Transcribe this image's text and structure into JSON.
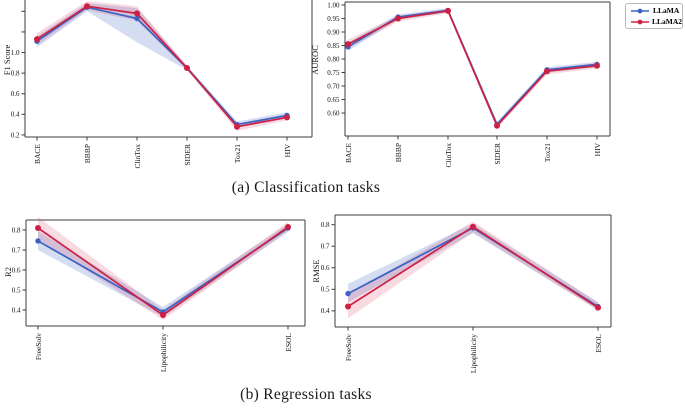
{
  "figure": {
    "background": "#ffffff",
    "caption_a": "(a) Classification tasks",
    "caption_b": "(b) Regression tasks"
  },
  "legend": {
    "position": "top-right",
    "items": [
      {
        "label": "LLaMA",
        "color": "#3b62c4"
      },
      {
        "label": "LLaMA2",
        "color": "#ce2045"
      }
    ]
  },
  "chart_data": [
    {
      "id": "f1",
      "type": "line",
      "title": "",
      "xlabel": "",
      "ylabel": "F1 Score",
      "categories": [
        "BACE",
        "BBBP",
        "ClinTox",
        "SIDER",
        "Tox21",
        "HIV"
      ],
      "ylim": [
        0.18,
        1.51
      ],
      "grid": false,
      "yticks": [
        {
          "value": 0.2,
          "label": "0.2"
        },
        {
          "value": 0.4,
          "label": "0.4"
        },
        {
          "value": 0.6,
          "label": "0.6"
        },
        {
          "value": 0.8,
          "label": "0.8"
        },
        {
          "value": 1.0,
          "label": "1.0"
        },
        {
          "value": 1.2,
          "label": ""
        },
        {
          "value": 1.4,
          "label": ""
        }
      ],
      "series": [
        {
          "name": "LLaMA",
          "color": "#3b62c4",
          "band_opacity": 0.22,
          "values": [
            1.11,
            1.44,
            1.33,
            0.85,
            0.3,
            0.39
          ],
          "band": [
            [
              1.05,
              1.16
            ],
            [
              1.4,
              1.48
            ],
            [
              1.1,
              1.43
            ],
            [
              0.83,
              0.87
            ],
            [
              0.27,
              0.33
            ],
            [
              0.36,
              0.42
            ]
          ]
        },
        {
          "name": "LLaMA2",
          "color": "#ce2045",
          "band_opacity": 0.16,
          "values": [
            1.13,
            1.45,
            1.38,
            0.85,
            0.28,
            0.37
          ],
          "band": [
            [
              1.07,
              1.19
            ],
            [
              1.41,
              1.5
            ],
            [
              1.31,
              1.45
            ],
            [
              0.83,
              0.87
            ],
            [
              0.24,
              0.31
            ],
            [
              0.34,
              0.4
            ]
          ]
        }
      ]
    },
    {
      "id": "auroc",
      "type": "line",
      "title": "",
      "xlabel": "",
      "ylabel": "AUROC",
      "categories": [
        "BACE",
        "BBBP",
        "ClinTox",
        "SIDER",
        "Tox21",
        "HIV"
      ],
      "ylim": [
        0.515,
        1.011
      ],
      "grid": false,
      "yticks": [
        {
          "value": 0.6,
          "label": "0.60"
        },
        {
          "value": 0.65,
          "label": "0.65"
        },
        {
          "value": 0.7,
          "label": "0.70"
        },
        {
          "value": 0.75,
          "label": "0.75"
        },
        {
          "value": 0.8,
          "label": "0.80"
        },
        {
          "value": 0.85,
          "label": "0.85"
        },
        {
          "value": 0.9,
          "label": "0.90"
        },
        {
          "value": 0.95,
          "label": "0.95"
        },
        {
          "value": 1.0,
          "label": "1.00"
        }
      ],
      "series": [
        {
          "name": "LLaMA",
          "color": "#3b62c4",
          "band_opacity": 0.22,
          "values": [
            0.845,
            0.955,
            0.98,
            0.558,
            0.76,
            0.78
          ],
          "band": [
            [
              0.83,
              0.86
            ],
            [
              0.945,
              0.965
            ],
            [
              0.972,
              0.988
            ],
            [
              0.548,
              0.568
            ],
            [
              0.75,
              0.77
            ],
            [
              0.77,
              0.79
            ]
          ]
        },
        {
          "name": "LLaMA2",
          "color": "#ce2045",
          "band_opacity": 0.16,
          "values": [
            0.855,
            0.95,
            0.978,
            0.553,
            0.755,
            0.775
          ],
          "band": [
            [
              0.84,
              0.872
            ],
            [
              0.938,
              0.96
            ],
            [
              0.97,
              0.986
            ],
            [
              0.543,
              0.563
            ],
            [
              0.743,
              0.765
            ],
            [
              0.765,
              0.785
            ]
          ]
        }
      ]
    },
    {
      "id": "r2",
      "type": "line",
      "title": "",
      "xlabel": "",
      "ylabel": "R2",
      "categories": [
        "FreeSolv",
        "Lipophilicity",
        "ESOL"
      ],
      "ylim": [
        0.32,
        0.85
      ],
      "grid": false,
      "yticks": [
        {
          "value": 0.4,
          "label": "0.4"
        },
        {
          "value": 0.5,
          "label": "0.5"
        },
        {
          "value": 0.6,
          "label": "0.6"
        },
        {
          "value": 0.7,
          "label": "0.7"
        },
        {
          "value": 0.8,
          "label": "0.8"
        }
      ],
      "series": [
        {
          "name": "LLaMA",
          "color": "#3b62c4",
          "band_opacity": 0.22,
          "values": [
            0.745,
            0.39,
            0.81
          ],
          "band": [
            [
              0.7,
              0.795
            ],
            [
              0.365,
              0.415
            ],
            [
              0.79,
              0.83
            ]
          ]
        },
        {
          "name": "LLaMA2",
          "color": "#ce2045",
          "band_opacity": 0.16,
          "values": [
            0.81,
            0.375,
            0.815
          ],
          "band": [
            [
              0.755,
              0.865
            ],
            [
              0.35,
              0.4
            ],
            [
              0.795,
              0.84
            ]
          ]
        }
      ]
    },
    {
      "id": "rmse",
      "type": "line",
      "title": "",
      "xlabel": "",
      "ylabel": "RMSE",
      "categories": [
        "FreeSolv",
        "Lipophilicity",
        "ESOL"
      ],
      "ylim": [
        0.325,
        0.845
      ],
      "grid": false,
      "yticks": [
        {
          "value": 0.4,
          "label": "0.4"
        },
        {
          "value": 0.5,
          "label": "0.5"
        },
        {
          "value": 0.6,
          "label": "0.6"
        },
        {
          "value": 0.7,
          "label": "0.7"
        },
        {
          "value": 0.8,
          "label": "0.8"
        }
      ],
      "series": [
        {
          "name": "LLaMA",
          "color": "#3b62c4",
          "band_opacity": 0.22,
          "values": [
            0.48,
            0.785,
            0.42
          ],
          "band": [
            [
              0.44,
              0.525
            ],
            [
              0.76,
              0.805
            ],
            [
              0.405,
              0.44
            ]
          ]
        },
        {
          "name": "LLaMA2",
          "color": "#ce2045",
          "band_opacity": 0.16,
          "values": [
            0.42,
            0.79,
            0.415
          ],
          "band": [
            [
              0.365,
              0.475
            ],
            [
              0.765,
              0.815
            ],
            [
              0.4,
              0.44
            ]
          ]
        }
      ]
    }
  ]
}
